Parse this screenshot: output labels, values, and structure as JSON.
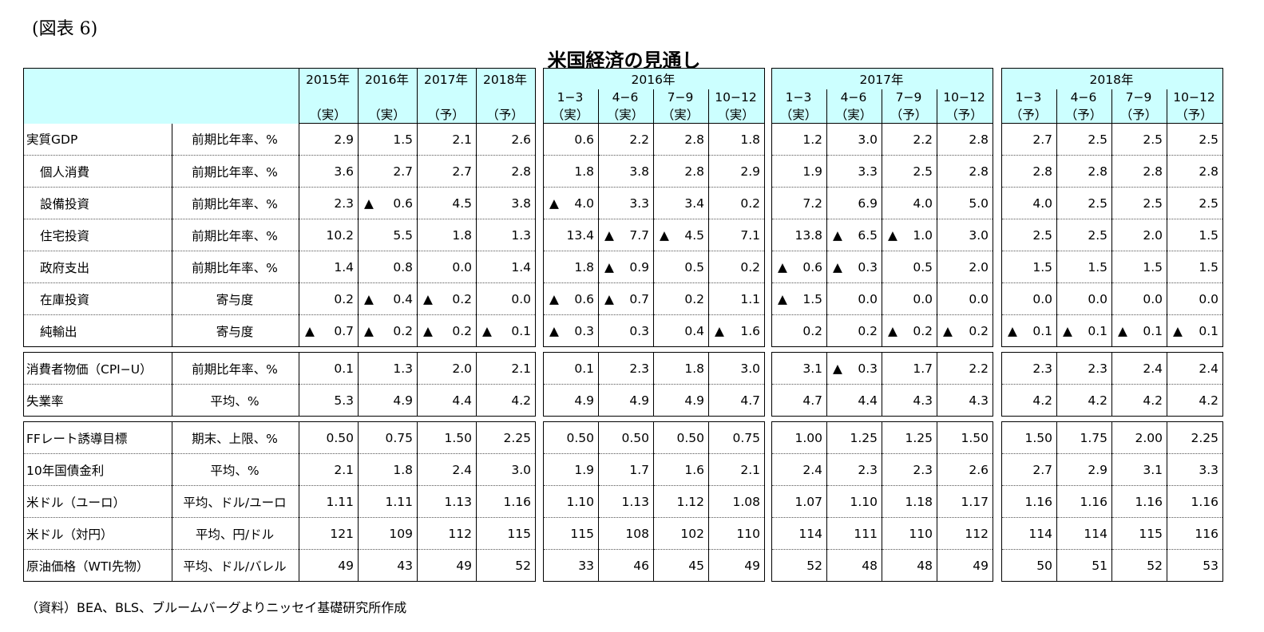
{
  "figure_label": "(図表 6)",
  "title": "米国経済の見通し",
  "source": "（資料）BEA、BLS、ブルームバーグよりニッセイ基礎研究所作成",
  "colors": {
    "header_bg": "#ccffff",
    "border": "#000000"
  },
  "chart_data": {
    "type": "table",
    "title": "米国経済の見通し",
    "annual_columns": [
      {
        "year": "2015年",
        "status": "（実）"
      },
      {
        "year": "2016年",
        "status": "（実）"
      },
      {
        "year": "2017年",
        "status": "（予）"
      },
      {
        "year": "2018年",
        "status": "（予）"
      }
    ],
    "quarter_groups": [
      {
        "year": "2016年",
        "quarters": [
          {
            "q": "1−3",
            "status": "（実）"
          },
          {
            "q": "4−6",
            "status": "（実）"
          },
          {
            "q": "7−9",
            "status": "（実）"
          },
          {
            "q": "10−12",
            "status": "（実）"
          }
        ]
      },
      {
        "year": "2017年",
        "quarters": [
          {
            "q": "1−3",
            "status": "（実）"
          },
          {
            "q": "4−6",
            "status": "（実）"
          },
          {
            "q": "7−9",
            "status": "（予）"
          },
          {
            "q": "10−12",
            "status": "（予）"
          }
        ]
      },
      {
        "year": "2018年",
        "quarters": [
          {
            "q": "1−3",
            "status": "（予）"
          },
          {
            "q": "4−6",
            "status": "（予）"
          },
          {
            "q": "7−9",
            "status": "（予）"
          },
          {
            "q": "10−12",
            "status": "（予）"
          }
        ]
      }
    ],
    "negative_marker": "▲",
    "sections": [
      {
        "rows": [
          {
            "label": "実質GDP",
            "indent": false,
            "unit": "前期比年率、%",
            "annual": [
              "2.9",
              "1.5",
              "2.1",
              "2.6"
            ],
            "q2016": [
              "0.6",
              "2.2",
              "2.8",
              "1.8"
            ],
            "q2017": [
              "1.2",
              "3.0",
              "2.2",
              "2.8"
            ],
            "q2018": [
              "2.7",
              "2.5",
              "2.5",
              "2.5"
            ]
          },
          {
            "label": "個人消費",
            "indent": true,
            "unit": "前期比年率、%",
            "annual": [
              "3.6",
              "2.7",
              "2.7",
              "2.8"
            ],
            "q2016": [
              "1.8",
              "3.8",
              "2.8",
              "2.9"
            ],
            "q2017": [
              "1.9",
              "3.3",
              "2.5",
              "2.8"
            ],
            "q2018": [
              "2.8",
              "2.8",
              "2.8",
              "2.8"
            ]
          },
          {
            "label": "設備投資",
            "indent": true,
            "unit": "前期比年率、%",
            "annual": [
              "2.3",
              "▲0.6",
              "4.5",
              "3.8"
            ],
            "q2016": [
              "▲4.0",
              "3.3",
              "3.4",
              "0.2"
            ],
            "q2017": [
              "7.2",
              "6.9",
              "4.0",
              "5.0"
            ],
            "q2018": [
              "4.0",
              "2.5",
              "2.5",
              "2.5"
            ]
          },
          {
            "label": "住宅投資",
            "indent": true,
            "unit": "前期比年率、%",
            "annual": [
              "10.2",
              "5.5",
              "1.8",
              "1.3"
            ],
            "q2016": [
              "13.4",
              "▲7.7",
              "▲4.5",
              "7.1"
            ],
            "q2017": [
              "13.8",
              "▲6.5",
              "▲1.0",
              "3.0"
            ],
            "q2018": [
              "2.5",
              "2.5",
              "2.0",
              "1.5"
            ]
          },
          {
            "label": "政府支出",
            "indent": true,
            "unit": "前期比年率、%",
            "annual": [
              "1.4",
              "0.8",
              "0.0",
              "1.4"
            ],
            "q2016": [
              "1.8",
              "▲0.9",
              "0.5",
              "0.2"
            ],
            "q2017": [
              "▲0.6",
              "▲0.3",
              "0.5",
              "2.0"
            ],
            "q2018": [
              "1.5",
              "1.5",
              "1.5",
              "1.5"
            ]
          },
          {
            "label": "在庫投資",
            "indent": true,
            "unit": "寄与度",
            "annual": [
              "0.2",
              "▲0.4",
              "▲0.2",
              "0.0"
            ],
            "q2016": [
              "▲0.6",
              "▲0.7",
              "0.2",
              "1.1"
            ],
            "q2017": [
              "▲1.5",
              "0.0",
              "0.0",
              "0.0"
            ],
            "q2018": [
              "0.0",
              "0.0",
              "0.0",
              "0.0"
            ]
          },
          {
            "label": "純輸出",
            "indent": true,
            "unit": "寄与度",
            "annual": [
              "▲0.7",
              "▲0.2",
              "▲0.2",
              "▲0.1"
            ],
            "q2016": [
              "▲0.3",
              "0.3",
              "0.4",
              "▲1.6"
            ],
            "q2017": [
              "0.2",
              "0.2",
              "▲0.2",
              "▲0.2"
            ],
            "q2018": [
              "▲0.1",
              "▲0.1",
              "▲0.1",
              "▲0.1"
            ]
          }
        ]
      },
      {
        "rows": [
          {
            "label": "消費者物価（CPI−U）",
            "indent": false,
            "unit": "前期比年率、%",
            "annual": [
              "0.1",
              "1.3",
              "2.0",
              "2.1"
            ],
            "q2016": [
              "0.1",
              "2.3",
              "1.8",
              "3.0"
            ],
            "q2017": [
              "3.1",
              "▲0.3",
              "1.7",
              "2.2"
            ],
            "q2018": [
              "2.3",
              "2.3",
              "2.4",
              "2.4"
            ]
          },
          {
            "label": "失業率",
            "indent": false,
            "unit": "平均、%",
            "annual": [
              "5.3",
              "4.9",
              "4.4",
              "4.2"
            ],
            "q2016": [
              "4.9",
              "4.9",
              "4.9",
              "4.7"
            ],
            "q2017": [
              "4.7",
              "4.4",
              "4.3",
              "4.3"
            ],
            "q2018": [
              "4.2",
              "4.2",
              "4.2",
              "4.2"
            ]
          }
        ]
      },
      {
        "rows": [
          {
            "label": "FFレート誘導目標",
            "indent": false,
            "unit": "期末、上限、%",
            "annual": [
              "0.50",
              "0.75",
              "1.50",
              "2.25"
            ],
            "q2016": [
              "0.50",
              "0.50",
              "0.50",
              "0.75"
            ],
            "q2017": [
              "1.00",
              "1.25",
              "1.25",
              "1.50"
            ],
            "q2018": [
              "1.50",
              "1.75",
              "2.00",
              "2.25"
            ]
          },
          {
            "label": "10年国債金利",
            "indent": false,
            "unit": "平均、%",
            "annual": [
              "2.1",
              "1.8",
              "2.4",
              "3.0"
            ],
            "q2016": [
              "1.9",
              "1.7",
              "1.6",
              "2.1"
            ],
            "q2017": [
              "2.4",
              "2.3",
              "2.3",
              "2.6"
            ],
            "q2018": [
              "2.7",
              "2.9",
              "3.1",
              "3.3"
            ]
          },
          {
            "label": "米ドル（ユーロ）",
            "indent": false,
            "unit": "平均、ドル/ユーロ",
            "annual": [
              "1.11",
              "1.11",
              "1.13",
              "1.16"
            ],
            "q2016": [
              "1.10",
              "1.13",
              "1.12",
              "1.08"
            ],
            "q2017": [
              "1.07",
              "1.10",
              "1.18",
              "1.17"
            ],
            "q2018": [
              "1.16",
              "1.16",
              "1.16",
              "1.16"
            ]
          },
          {
            "label": "米ドル（対円）",
            "indent": false,
            "unit": "平均、円/ドル",
            "annual": [
              "121",
              "109",
              "112",
              "115"
            ],
            "q2016": [
              "115",
              "108",
              "102",
              "110"
            ],
            "q2017": [
              "114",
              "111",
              "110",
              "112"
            ],
            "q2018": [
              "114",
              "114",
              "115",
              "116"
            ]
          },
          {
            "label": "原油価格（WTI先物）",
            "indent": false,
            "unit": "平均、ドル/バレル",
            "annual": [
              "49",
              "43",
              "49",
              "52"
            ],
            "q2016": [
              "33",
              "46",
              "45",
              "49"
            ],
            "q2017": [
              "52",
              "48",
              "48",
              "49"
            ],
            "q2018": [
              "50",
              "51",
              "52",
              "53"
            ]
          }
        ]
      }
    ]
  }
}
